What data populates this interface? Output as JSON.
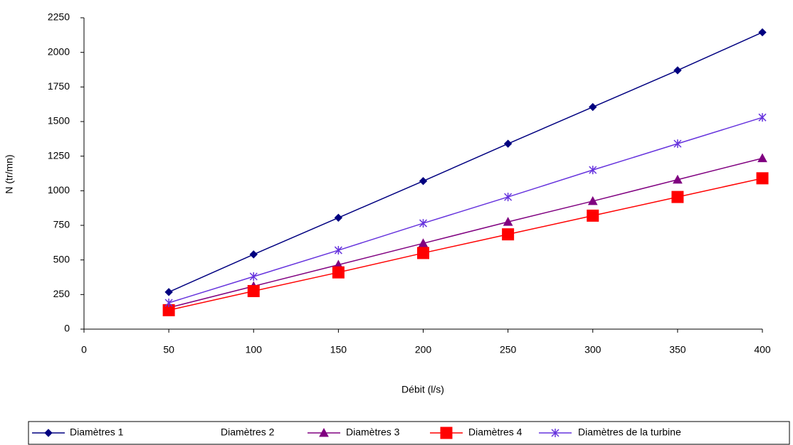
{
  "chart_data": {
    "type": "line",
    "x_label": "Débit (l/s)",
    "y_label": "N (tr/mn)",
    "x": [
      50,
      100,
      150,
      200,
      250,
      300,
      350,
      400
    ],
    "xlim": [
      0,
      400
    ],
    "xticks": [
      0,
      50,
      100,
      150,
      200,
      250,
      300,
      350,
      400
    ],
    "ylim": [
      0,
      2250
    ],
    "yticks": [
      0,
      250,
      500,
      750,
      1000,
      1250,
      1500,
      1750,
      2000,
      2250
    ],
    "grid": false,
    "legend": "bottom",
    "series": [
      {
        "name": "Diamètres 1",
        "color": "#000080",
        "marker": "diamond",
        "values": [
          268,
          540,
          805,
          1070,
          1340,
          1605,
          1870,
          2145
        ]
      },
      {
        "name": "Diamètres 2",
        "values": [
          null,
          null,
          null,
          null,
          null,
          null,
          null,
          null
        ]
      },
      {
        "name": "Diamètres 3",
        "color": "#800080",
        "marker": "triangle",
        "values": [
          155,
          310,
          465,
          620,
          775,
          925,
          1080,
          1235
        ]
      },
      {
        "name": "Diamètres 4",
        "color": "#ff0000",
        "marker": "square",
        "values": [
          137,
          275,
          410,
          550,
          685,
          820,
          955,
          1090
        ]
      },
      {
        "name": "Diamètres de la turbine",
        "color": "#6633dd",
        "marker": "star",
        "values": [
          190,
          380,
          570,
          765,
          955,
          1150,
          1340,
          1530
        ]
      }
    ]
  }
}
